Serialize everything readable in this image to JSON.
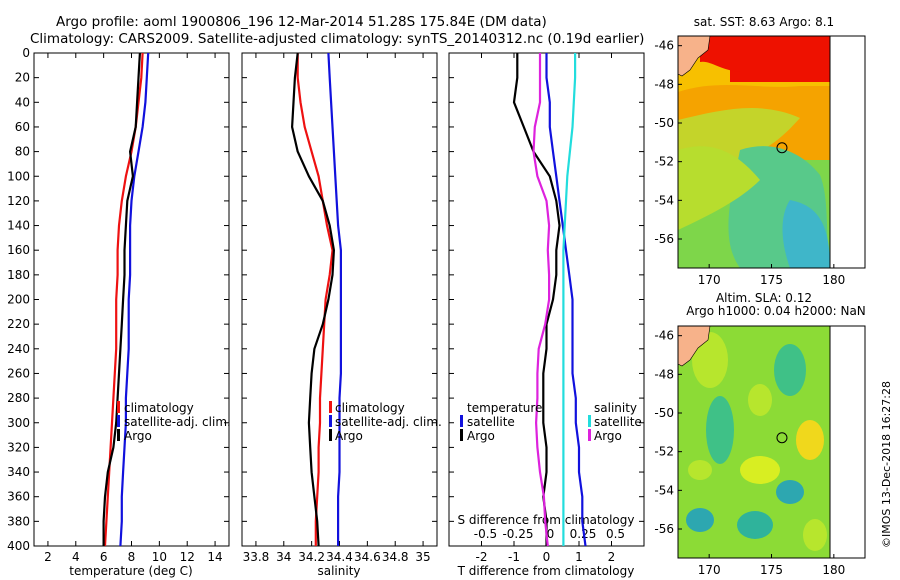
{
  "header": {
    "title_line1": "Argo profile: aoml 1900806_196 12-Mar-2014 51.28S 175.84E (DM data)",
    "title_line2": "Climatology: CARS2009. Satellite-adjusted climatology: synTS_20140312.nc (0.19d earlier)"
  },
  "colors": {
    "climatology": "#ee1111",
    "satellite": "#1111dd",
    "argo": "#000000",
    "cyan": "#22dddd",
    "magenta": "#dd22dd"
  },
  "chart_data": [
    {
      "type": "line",
      "id": "temperature",
      "xlabel": "temperature (deg C)",
      "ylabel": "",
      "xlim": [
        1,
        15
      ],
      "ylim": [
        0,
        400
      ],
      "xticks": [
        2,
        4,
        6,
        8,
        10,
        12,
        14
      ],
      "yticks": [
        0,
        20,
        40,
        60,
        80,
        100,
        120,
        140,
        160,
        180,
        200,
        220,
        240,
        260,
        280,
        300,
        320,
        340,
        360,
        380,
        400
      ],
      "legend": [
        "climatology",
        "satellite-adj. clim.",
        "Argo"
      ],
      "series": [
        {
          "name": "climatology",
          "color": "#ee1111",
          "x": [
            8.8,
            8.7,
            8.5,
            8.3,
            8.0,
            7.6,
            7.3,
            7.1,
            7.0,
            7.0,
            6.9,
            6.9,
            6.9,
            6.8,
            6.7,
            6.6,
            6.5,
            6.4,
            6.3,
            6.2,
            6.1
          ],
          "depth": [
            0,
            20,
            40,
            60,
            80,
            100,
            120,
            140,
            160,
            180,
            200,
            220,
            240,
            260,
            280,
            300,
            320,
            340,
            360,
            380,
            400
          ]
        },
        {
          "name": "satellite-adj. clim.",
          "color": "#1111dd",
          "x": [
            9.2,
            9.1,
            9.0,
            8.8,
            8.5,
            8.2,
            8.0,
            7.9,
            7.9,
            7.9,
            7.8,
            7.8,
            7.8,
            7.7,
            7.6,
            7.6,
            7.5,
            7.4,
            7.3,
            7.3,
            7.2
          ],
          "depth": [
            0,
            20,
            40,
            60,
            80,
            100,
            120,
            140,
            160,
            180,
            200,
            220,
            240,
            260,
            280,
            300,
            320,
            340,
            360,
            380,
            400
          ]
        },
        {
          "name": "Argo",
          "color": "#000000",
          "x": [
            8.6,
            8.5,
            8.4,
            8.3,
            7.9,
            8.1,
            7.7,
            7.6,
            7.5,
            7.5,
            7.4,
            7.3,
            7.2,
            7.1,
            7.0,
            6.9,
            6.7,
            6.3,
            6.1,
            6.0,
            6.0
          ],
          "depth": [
            0,
            20,
            40,
            60,
            80,
            100,
            120,
            140,
            160,
            180,
            200,
            220,
            240,
            260,
            280,
            300,
            320,
            340,
            360,
            380,
            400
          ]
        }
      ]
    },
    {
      "type": "line",
      "id": "salinity",
      "xlabel": "salinity",
      "xlim": [
        33.7,
        35.1
      ],
      "ylim": [
        0,
        400
      ],
      "xticks": [
        33.8,
        34,
        34.2,
        34.4,
        34.6,
        34.8,
        35
      ],
      "legend": [
        "climatology",
        "satellite-adj. clim.",
        "Argo"
      ],
      "series": [
        {
          "name": "climatology",
          "color": "#ee1111",
          "x": [
            34.1,
            34.1,
            34.12,
            34.15,
            34.2,
            34.25,
            34.28,
            34.31,
            34.35,
            34.33,
            34.3,
            34.29,
            34.28,
            34.27,
            34.26,
            34.26,
            34.25,
            34.25,
            34.24,
            34.23,
            34.23
          ],
          "depth": [
            0,
            20,
            40,
            60,
            80,
            100,
            120,
            140,
            160,
            180,
            200,
            220,
            240,
            260,
            280,
            300,
            320,
            340,
            360,
            380,
            400
          ]
        },
        {
          "name": "satellite-adj. clim.",
          "color": "#1111dd",
          "x": [
            34.32,
            34.33,
            34.34,
            34.35,
            34.36,
            34.37,
            34.38,
            34.39,
            34.41,
            34.41,
            34.41,
            34.41,
            34.41,
            34.41,
            34.4,
            34.4,
            34.4,
            34.4,
            34.39,
            34.39,
            34.39
          ],
          "depth": [
            0,
            20,
            40,
            60,
            80,
            100,
            120,
            140,
            160,
            180,
            200,
            220,
            240,
            260,
            280,
            300,
            320,
            340,
            360,
            380,
            400
          ]
        },
        {
          "name": "Argo",
          "color": "#000000",
          "x": [
            34.1,
            34.08,
            34.07,
            34.06,
            34.1,
            34.18,
            34.28,
            34.33,
            34.36,
            34.35,
            34.32,
            34.28,
            34.22,
            34.2,
            34.19,
            34.18,
            34.19,
            34.2,
            34.22,
            34.24,
            34.25
          ],
          "depth": [
            0,
            20,
            40,
            60,
            80,
            100,
            120,
            140,
            160,
            180,
            200,
            220,
            240,
            260,
            280,
            300,
            320,
            340,
            360,
            380,
            400
          ]
        }
      ]
    },
    {
      "type": "line",
      "id": "differences",
      "xlabel": "T difference from climatology",
      "top_axis_label": "S difference from climatology",
      "xlim": [
        -3,
        3
      ],
      "ylim": [
        0,
        400
      ],
      "xticks": [
        -2,
        -1,
        0,
        1,
        2
      ],
      "top_ticks": [
        "-0.5",
        "-0.25",
        "0",
        "0.25",
        "0.5"
      ],
      "top_tick_values": [
        -2,
        -1,
        0,
        1,
        2
      ],
      "legend_left": {
        "title": "temperature",
        "items": [
          "satellite",
          "Argo"
        ]
      },
      "legend_right": {
        "title": "salinity",
        "items": [
          "satellite",
          "Argo"
        ]
      },
      "series": [
        {
          "name": "T satellite",
          "color": "#1111dd",
          "x": [
            0.0,
            0.0,
            0.1,
            0.1,
            0.2,
            0.3,
            0.4,
            0.5,
            0.6,
            0.7,
            0.8,
            0.8,
            0.8,
            0.8,
            0.9,
            0.9,
            1.0,
            1.0,
            1.1,
            1.1,
            1.2
          ],
          "depth": [
            0,
            20,
            40,
            60,
            80,
            100,
            120,
            140,
            160,
            180,
            200,
            220,
            240,
            260,
            280,
            300,
            320,
            340,
            360,
            380,
            400
          ]
        },
        {
          "name": "T Argo",
          "color": "#000000",
          "x": [
            -0.9,
            -0.9,
            -1.0,
            -0.7,
            -0.4,
            0.1,
            0.3,
            0.4,
            0.3,
            0.3,
            0.2,
            0.0,
            0.0,
            -0.1,
            -0.1,
            -0.1,
            0.0,
            0.0,
            -0.1,
            0.0,
            0.0
          ],
          "depth": [
            0,
            20,
            40,
            60,
            80,
            100,
            120,
            140,
            160,
            180,
            200,
            220,
            240,
            260,
            280,
            300,
            320,
            340,
            360,
            380,
            400
          ]
        },
        {
          "name": "S satellite",
          "color": "#22dddd",
          "x": [
            0.88,
            0.88,
            0.84,
            0.8,
            0.72,
            0.64,
            0.6,
            0.56,
            0.52,
            0.52,
            0.52,
            0.52,
            0.52,
            0.52,
            0.52,
            0.52,
            0.52,
            0.52,
            0.52,
            0.52,
            0.52
          ],
          "depth": [
            0,
            20,
            40,
            60,
            80,
            100,
            120,
            140,
            160,
            180,
            200,
            220,
            240,
            260,
            280,
            300,
            320,
            340,
            360,
            380,
            400
          ]
        },
        {
          "name": "S Argo",
          "color": "#dd22dd",
          "x": [
            -0.2,
            -0.2,
            -0.2,
            -0.36,
            -0.4,
            -0.28,
            -0.0,
            0.08,
            0.04,
            0.08,
            0.08,
            -0.04,
            -0.24,
            -0.28,
            -0.28,
            -0.32,
            -0.28,
            -0.2,
            -0.08,
            -0.04,
            0.04
          ],
          "depth": [
            0,
            20,
            40,
            60,
            80,
            100,
            120,
            140,
            160,
            180,
            200,
            220,
            240,
            260,
            280,
            300,
            320,
            340,
            360,
            380,
            400
          ]
        }
      ]
    },
    {
      "type": "heatmap",
      "id": "sst-map",
      "title": "sat. SST: 8.63 Argo: 8.1",
      "xticks": [
        170,
        175,
        180
      ],
      "yticks": [
        -46,
        -48,
        -50,
        -52,
        -54,
        -56
      ],
      "xlim": [
        167.5,
        182.5
      ],
      "ylim": [
        -57.5,
        -45.5
      ],
      "marker": {
        "lon": 175.84,
        "lat": -51.28
      }
    },
    {
      "type": "heatmap",
      "id": "sla-map",
      "title_line1": "Altim. SLA: 0.12",
      "title_line2": "Argo h1000: 0.04 h2000: NaN",
      "xticks": [
        170,
        175,
        180
      ],
      "yticks": [
        -46,
        -48,
        -50,
        -52,
        -54,
        -56
      ],
      "xlim": [
        167.5,
        182.5
      ],
      "ylim": [
        -57.5,
        -45.5
      ],
      "marker": {
        "lon": 175.84,
        "lat": -51.28
      }
    }
  ],
  "footer": {
    "watermark": "©IMOS 13-Dec-2018 16:27:28"
  }
}
